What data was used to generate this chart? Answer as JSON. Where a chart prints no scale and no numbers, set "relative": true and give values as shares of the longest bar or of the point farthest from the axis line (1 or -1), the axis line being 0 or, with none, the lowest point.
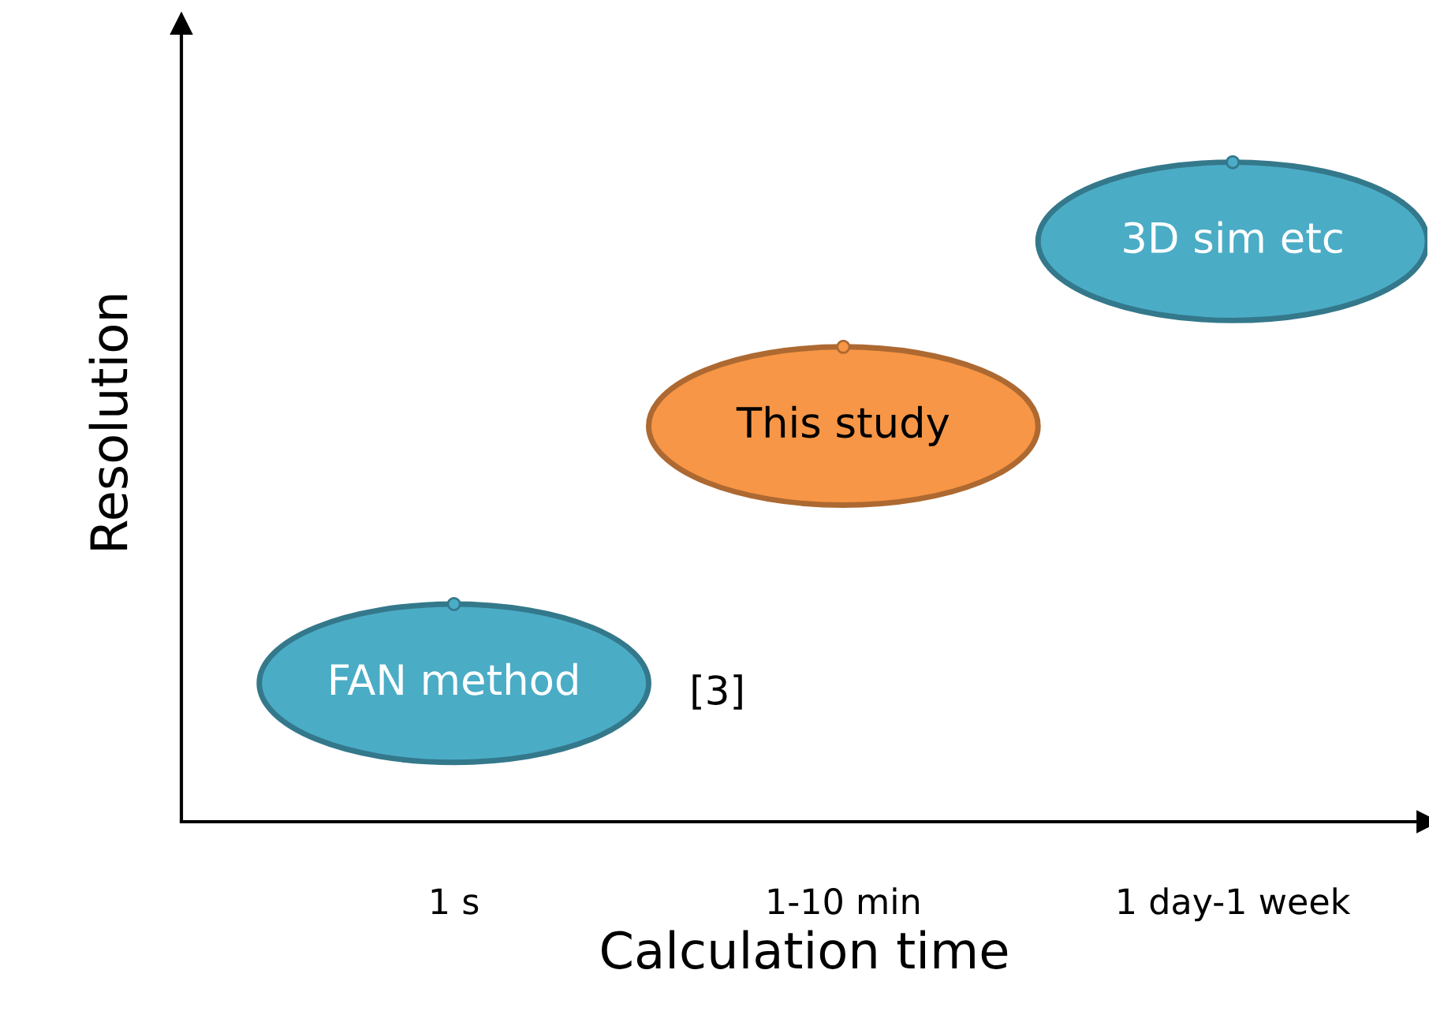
{
  "chart_data": {
    "type": "scatter",
    "xlabel": "Calculation time",
    "ylabel": "Resolution",
    "categories": [
      "1 s",
      "1-10 min",
      "1 day-1 week"
    ],
    "relative": true,
    "values": [
      0.33,
      0.72,
      1
    ],
    "colors": [
      "#4bacc6",
      "#f79646",
      "#4bacc6"
    ],
    "annotations": [
      {
        "text": "FAN method",
        "x": "1 s",
        "y": 0.33
      },
      {
        "text": "This study",
        "x": "1-10 min",
        "y": 0.72
      },
      {
        "text": "3D sim etc",
        "x": "1 day-1 week",
        "y": 1
      },
      "[3]"
    ],
    "grid": false,
    "legend": false
  }
}
